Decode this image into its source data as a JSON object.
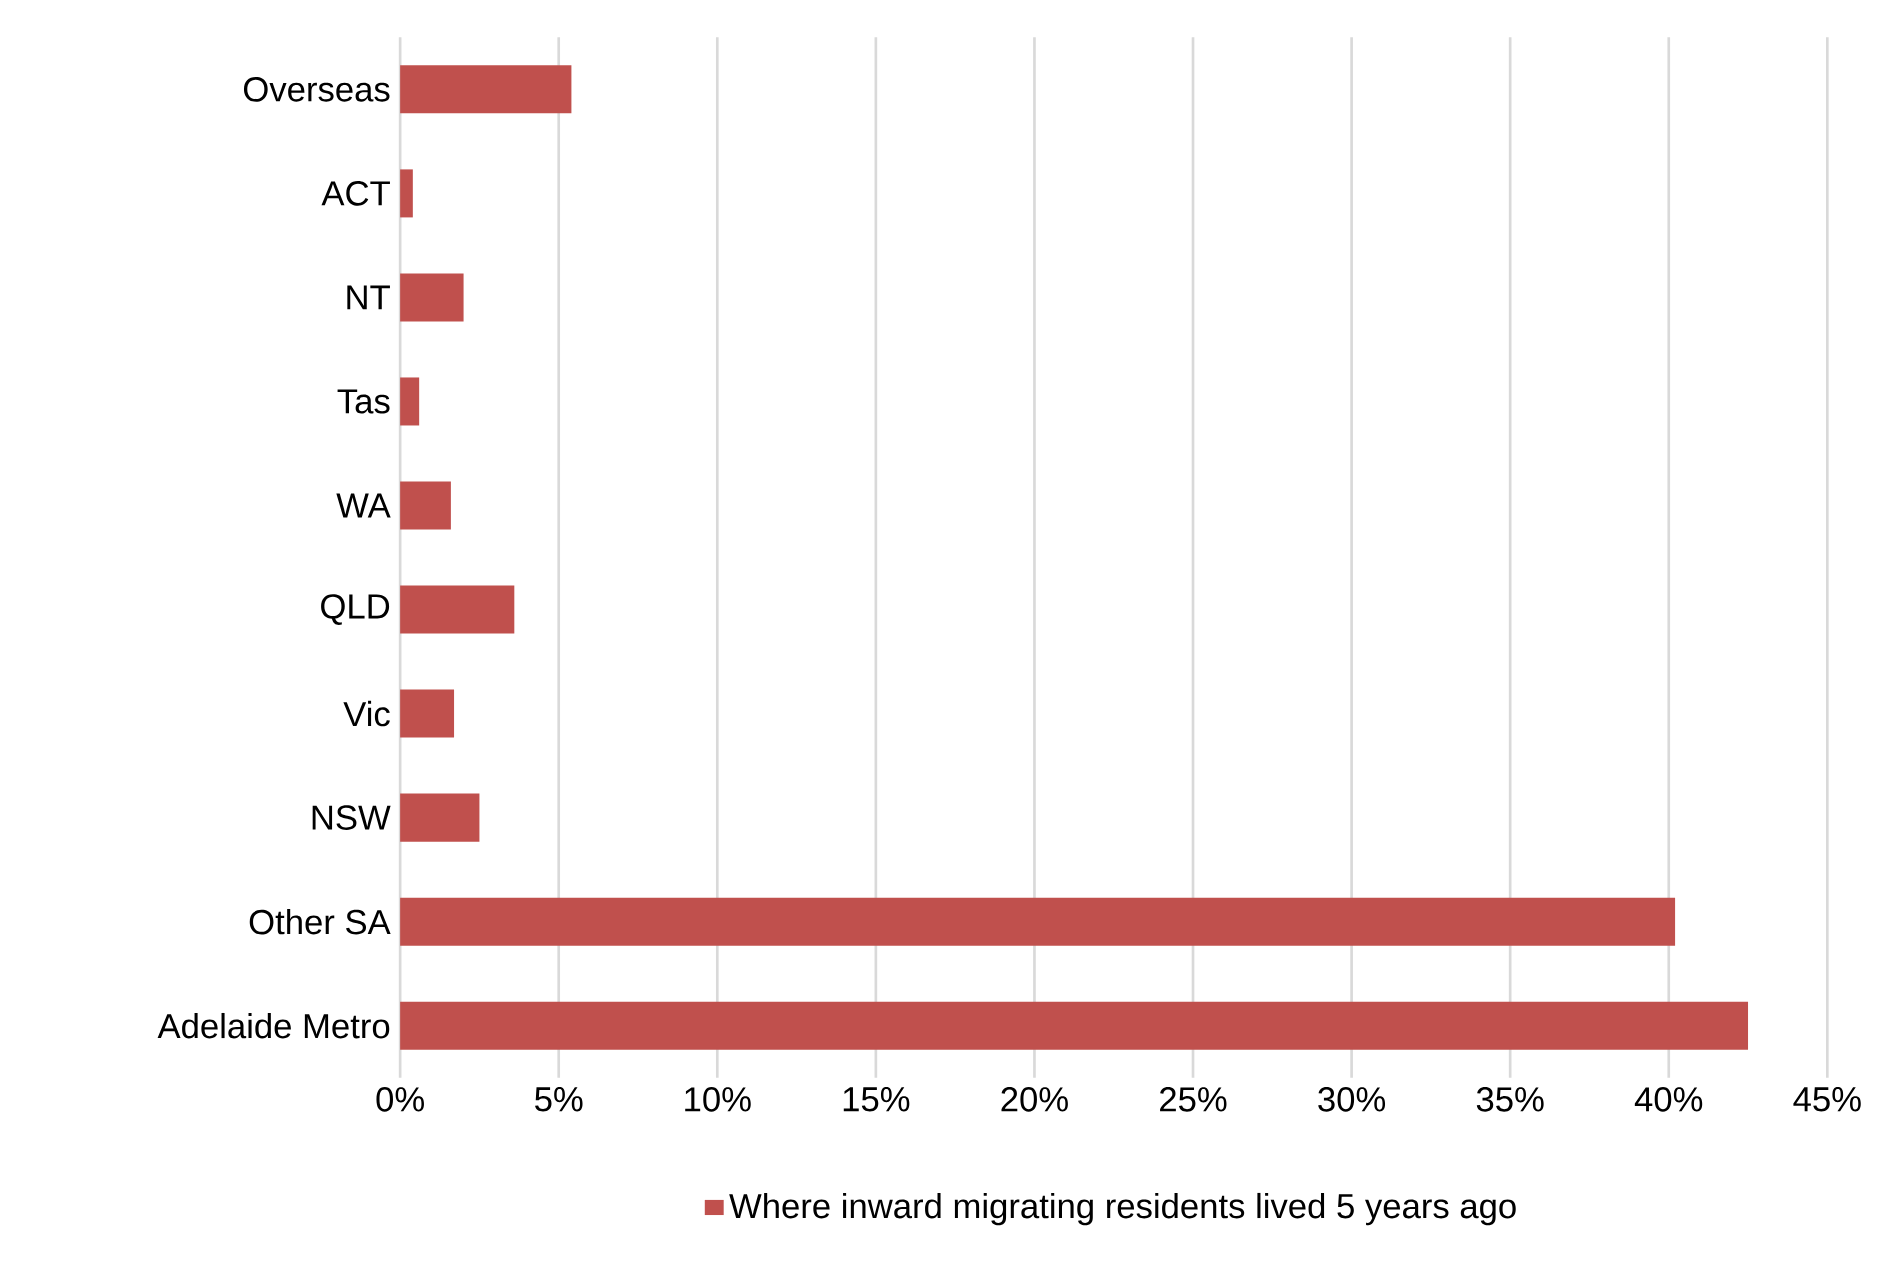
{
  "chart_data": {
    "type": "bar",
    "orientation": "horizontal",
    "categories": [
      "Overseas",
      "ACT",
      "NT",
      "Tas",
      "WA",
      "QLD",
      "Vic",
      "NSW",
      "Other SA",
      "Adelaide Metro"
    ],
    "series": [
      {
        "name": "Where inward migrating residents lived 5 years ago",
        "color": "#c0504d",
        "values": [
          5.4,
          0.4,
          2.0,
          0.6,
          1.6,
          3.6,
          1.7,
          2.5,
          40.2,
          42.5
        ]
      }
    ],
    "xlim": [
      0,
      45
    ],
    "xticks": [
      {
        "value": 0,
        "label": "0%"
      },
      {
        "value": 5,
        "label": "5%"
      },
      {
        "value": 10,
        "label": "10%"
      },
      {
        "value": 15,
        "label": "15%"
      },
      {
        "value": 20,
        "label": "20%"
      },
      {
        "value": 25,
        "label": "25%"
      },
      {
        "value": 30,
        "label": "30%"
      },
      {
        "value": 35,
        "label": "35%"
      },
      {
        "value": 40,
        "label": "40%"
      },
      {
        "value": 45,
        "label": "45%"
      }
    ],
    "grid": "x",
    "legend": "bottom"
  }
}
